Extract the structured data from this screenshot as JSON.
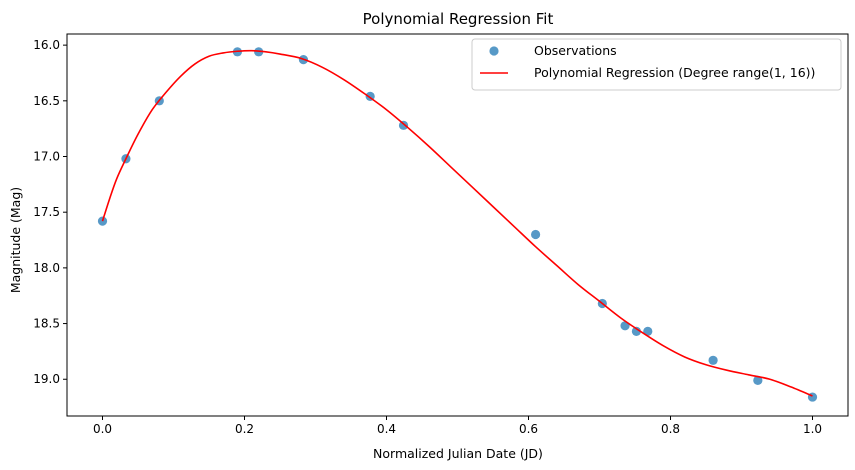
{
  "chart_data": {
    "type": "scatter",
    "title": "Polynomial Regression Fit",
    "xlabel": "Normalized Julian Date (JD)",
    "ylabel": "Magnitude (Mag)",
    "xlim": [
      -0.05,
      1.05
    ],
    "ylim": [
      19.33,
      15.9
    ],
    "y_inverted": true,
    "x_ticks": [
      0.0,
      0.2,
      0.4,
      0.6,
      0.8,
      1.0
    ],
    "x_tick_labels": [
      "0.0",
      "0.2",
      "0.4",
      "0.6",
      "0.8",
      "1.0"
    ],
    "y_ticks": [
      16.0,
      16.5,
      17.0,
      17.5,
      18.0,
      18.5,
      19.0
    ],
    "y_tick_labels": [
      "16.0",
      "16.5",
      "17.0",
      "17.5",
      "18.0",
      "18.5",
      "19.0"
    ],
    "grid": false,
    "legend_position": "top-right",
    "series": [
      {
        "name": "Observations",
        "kind": "scatter",
        "color": "#1f77b4",
        "points": [
          {
            "x": 0.0,
            "y": 17.58
          },
          {
            "x": 0.033,
            "y": 17.02
          },
          {
            "x": 0.08,
            "y": 16.5
          },
          {
            "x": 0.19,
            "y": 16.06
          },
          {
            "x": 0.22,
            "y": 16.06
          },
          {
            "x": 0.283,
            "y": 16.13
          },
          {
            "x": 0.377,
            "y": 16.46
          },
          {
            "x": 0.424,
            "y": 16.72
          },
          {
            "x": 0.61,
            "y": 17.7
          },
          {
            "x": 0.704,
            "y": 18.32
          },
          {
            "x": 0.736,
            "y": 18.52
          },
          {
            "x": 0.752,
            "y": 18.57
          },
          {
            "x": 0.768,
            "y": 18.57
          },
          {
            "x": 0.86,
            "y": 18.83
          },
          {
            "x": 0.923,
            "y": 19.01
          },
          {
            "x": 1.0,
            "y": 19.16
          }
        ]
      },
      {
        "name": "Polynomial Regression (Degree range(1, 16))",
        "kind": "line",
        "color": "#ff0000",
        "points": [
          {
            "x": 0.0,
            "y": 17.58
          },
          {
            "x": 0.01,
            "y": 17.38
          },
          {
            "x": 0.02,
            "y": 17.2
          },
          {
            "x": 0.033,
            "y": 17.02
          },
          {
            "x": 0.05,
            "y": 16.8
          },
          {
            "x": 0.07,
            "y": 16.58
          },
          {
            "x": 0.09,
            "y": 16.42
          },
          {
            "x": 0.11,
            "y": 16.28
          },
          {
            "x": 0.13,
            "y": 16.17
          },
          {
            "x": 0.15,
            "y": 16.1
          },
          {
            "x": 0.17,
            "y": 16.07
          },
          {
            "x": 0.19,
            "y": 16.055
          },
          {
            "x": 0.21,
            "y": 16.05
          },
          {
            "x": 0.23,
            "y": 16.06
          },
          {
            "x": 0.25,
            "y": 16.08
          },
          {
            "x": 0.28,
            "y": 16.12
          },
          {
            "x": 0.31,
            "y": 16.2
          },
          {
            "x": 0.34,
            "y": 16.31
          },
          {
            "x": 0.37,
            "y": 16.44
          },
          {
            "x": 0.4,
            "y": 16.58
          },
          {
            "x": 0.43,
            "y": 16.74
          },
          {
            "x": 0.46,
            "y": 16.91
          },
          {
            "x": 0.49,
            "y": 17.09
          },
          {
            "x": 0.52,
            "y": 17.27
          },
          {
            "x": 0.55,
            "y": 17.45
          },
          {
            "x": 0.58,
            "y": 17.63
          },
          {
            "x": 0.61,
            "y": 17.81
          },
          {
            "x": 0.64,
            "y": 17.98
          },
          {
            "x": 0.67,
            "y": 18.15
          },
          {
            "x": 0.7,
            "y": 18.3
          },
          {
            "x": 0.73,
            "y": 18.45
          },
          {
            "x": 0.76,
            "y": 18.58
          },
          {
            "x": 0.79,
            "y": 18.7
          },
          {
            "x": 0.82,
            "y": 18.8
          },
          {
            "x": 0.85,
            "y": 18.87
          },
          {
            "x": 0.88,
            "y": 18.92
          },
          {
            "x": 0.91,
            "y": 18.96
          },
          {
            "x": 0.94,
            "y": 19.0
          },
          {
            "x": 0.97,
            "y": 19.07
          },
          {
            "x": 1.0,
            "y": 19.15
          }
        ]
      }
    ]
  }
}
